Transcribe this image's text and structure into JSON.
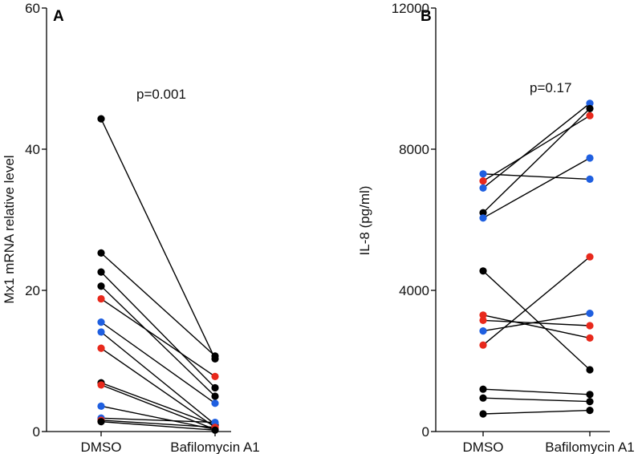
{
  "colors": {
    "black": "#000000",
    "red": "#e8291c",
    "blue": "#1f5fe0",
    "axis": "#000000"
  },
  "chart_data": [
    {
      "type": "scatter",
      "subtype": "paired",
      "panel": "A",
      "ylabel": "Mx1 mRNA relative level",
      "xlabel": "",
      "categories": [
        "DMSO",
        "Bafilomycin A1"
      ],
      "ylim": [
        0,
        60
      ],
      "yticks": [
        "0",
        "20",
        "40",
        "60"
      ],
      "pvalue": "p=0.001",
      "pairs": [
        {
          "before": 44.3,
          "after": 10.3,
          "color": "black"
        },
        {
          "before": 25.3,
          "after": 10.7,
          "color": "black"
        },
        {
          "before": 22.6,
          "after": 6.2,
          "color": "black"
        },
        {
          "before": 20.6,
          "after": 5.0,
          "color": "black"
        },
        {
          "before": 18.8,
          "after": 7.8,
          "color": "red"
        },
        {
          "before": 15.5,
          "after": 4.0,
          "color": "blue"
        },
        {
          "before": 14.1,
          "after": 1.0,
          "color": "blue"
        },
        {
          "before": 11.8,
          "after": 0.6,
          "color": "red"
        },
        {
          "before": 6.9,
          "after": 0.9,
          "color": "black"
        },
        {
          "before": 6.6,
          "after": 0.3,
          "color": "red"
        },
        {
          "before": 3.6,
          "after": 0.3,
          "color": "blue"
        },
        {
          "before": 1.9,
          "after": 1.3,
          "color": "blue"
        },
        {
          "before": 1.6,
          "after": 0.6,
          "color": "red"
        },
        {
          "before": 1.4,
          "after": 0.2,
          "color": "black"
        }
      ]
    },
    {
      "type": "scatter",
      "subtype": "paired",
      "panel": "B",
      "ylabel": "IL-8 (pg/ml)",
      "xlabel": "",
      "categories": [
        "DMSO",
        "Bafilomycin A1"
      ],
      "ylim": [
        0,
        12000
      ],
      "yticks": [
        "0",
        "4000",
        "8000",
        "12000"
      ],
      "pvalue": "p=0.17",
      "pairs": [
        {
          "before": 7300,
          "after": 7150,
          "color": "blue"
        },
        {
          "before": 7100,
          "after": 8950,
          "color": "red"
        },
        {
          "before": 6900,
          "after": 9300,
          "color": "blue"
        },
        {
          "before": 6200,
          "after": 9150,
          "color": "black"
        },
        {
          "before": 6050,
          "after": 7750,
          "color": "blue"
        },
        {
          "before": 4550,
          "after": 1750,
          "color": "black"
        },
        {
          "before": 3300,
          "after": 2650,
          "color": "red"
        },
        {
          "before": 3150,
          "after": 3000,
          "color": "red"
        },
        {
          "before": 2850,
          "after": 3350,
          "color": "blue"
        },
        {
          "before": 2450,
          "after": 4950,
          "color": "red"
        },
        {
          "before": 1200,
          "after": 1050,
          "color": "black"
        },
        {
          "before": 950,
          "after": 850,
          "color": "black"
        },
        {
          "before": 500,
          "after": 600,
          "color": "black"
        }
      ]
    }
  ]
}
